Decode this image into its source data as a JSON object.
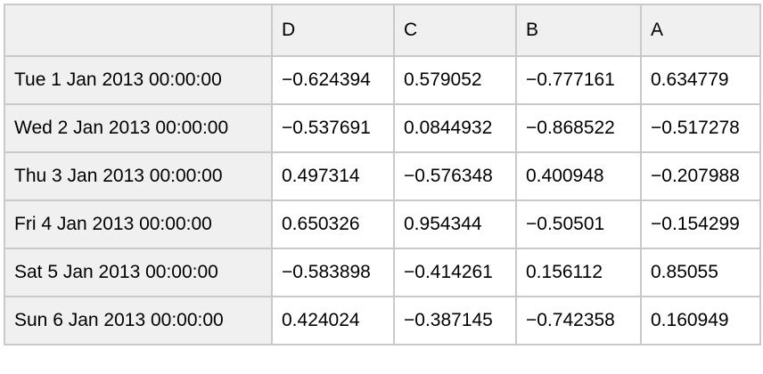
{
  "chart_data": {
    "type": "table",
    "title": "",
    "corner_label": "",
    "columns": [
      "D",
      "C",
      "B",
      "A"
    ],
    "index_description": "daily dates 1-6 Jan 2013 with 00:00:00 time",
    "rows": [
      {
        "label": "Tue 1 Jan 2013 00:00:00",
        "values": [
          "−0.624394",
          "0.579052",
          "−0.777161",
          "0.634779"
        ]
      },
      {
        "label": "Wed 2 Jan 2013 00:00:00",
        "values": [
          "−0.537691",
          "0.0844932",
          "−0.868522",
          "−0.517278"
        ]
      },
      {
        "label": "Thu 3 Jan 2013 00:00:00",
        "values": [
          "0.497314",
          "−0.576348",
          "0.400948",
          "−0.207988"
        ]
      },
      {
        "label": "Fri 4 Jan 2013 00:00:00",
        "values": [
          "0.650326",
          "0.954344",
          "−0.50501",
          "−0.154299"
        ]
      },
      {
        "label": "Sat 5 Jan 2013 00:00:00",
        "values": [
          "−0.583898",
          "−0.414261",
          "0.156112",
          "0.85055"
        ]
      },
      {
        "label": "Sun 6 Jan 2013 00:00:00",
        "values": [
          "0.424024",
          "−0.387145",
          "−0.742358",
          "0.160949"
        ]
      }
    ]
  },
  "colors": {
    "header_background": "#f0f0f0",
    "cell_background": "#ffffff",
    "border": "#c9c9c9",
    "text": "#000000"
  }
}
